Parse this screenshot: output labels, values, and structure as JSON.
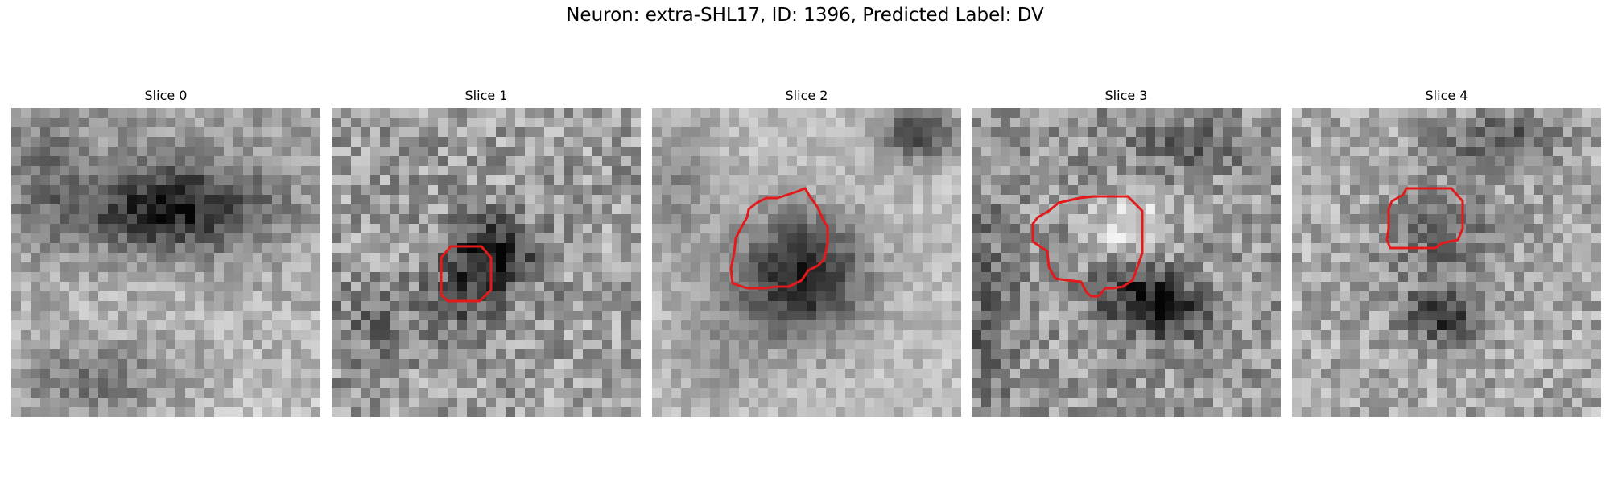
{
  "figure": {
    "title": "Neuron: extra-SHL17, ID: 1396, Predicted Label: DV"
  },
  "slices": [
    {
      "label": "Slice 0",
      "has_contour": false
    },
    {
      "label": "Slice 1",
      "has_contour": true
    },
    {
      "label": "Slice 2",
      "has_contour": true
    },
    {
      "label": "Slice 3",
      "has_contour": true
    },
    {
      "label": "Slice 4",
      "has_contour": true
    }
  ],
  "colors": {
    "contour": "#e31a1c",
    "colormap": "gray"
  }
}
